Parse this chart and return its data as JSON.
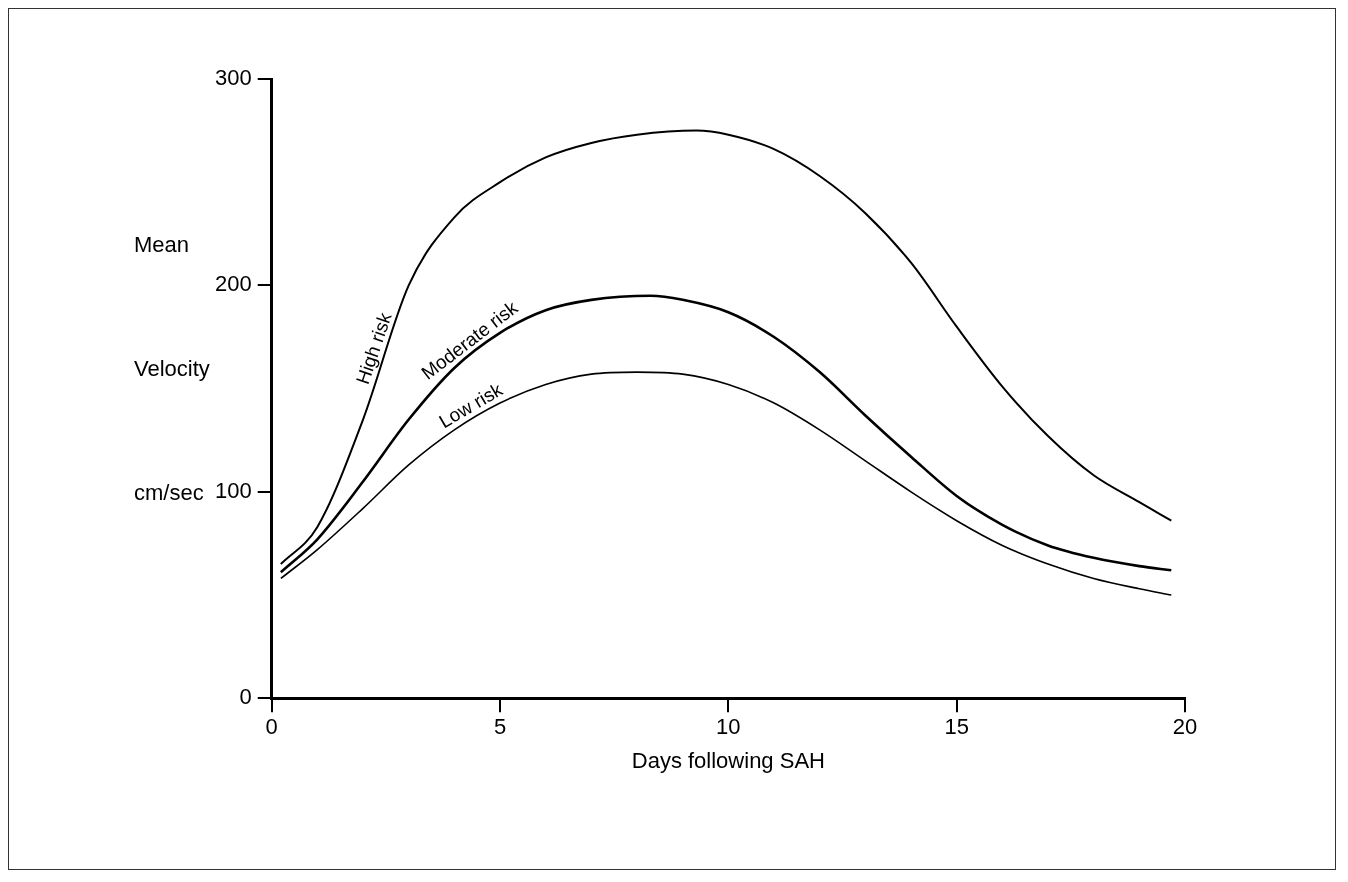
{
  "chart_data": {
    "type": "line",
    "xlabel": "Days following SAH",
    "ylabel": "Mean Velocity cm/sec",
    "xlim": [
      0,
      20
    ],
    "xticks": [
      0,
      5,
      10,
      15,
      20
    ],
    "ylim": [
      0,
      300
    ],
    "yticks": [
      0,
      100,
      200,
      300
    ],
    "grid": false,
    "legend": false,
    "marker": "none",
    "line_style": "solid",
    "series": [
      {
        "name": "High risk",
        "color": "#000000",
        "x": [
          0.2,
          1,
          2,
          3,
          4,
          5,
          6,
          7,
          8,
          9.3,
          10,
          11,
          12,
          13,
          14,
          15,
          16,
          17,
          18,
          19,
          19.7
        ],
        "values": [
          65,
          83,
          135,
          200,
          233,
          250,
          262,
          269,
          273,
          275,
          273,
          266,
          253,
          235,
          211,
          180,
          151,
          127,
          108,
          95,
          86
        ]
      },
      {
        "name": "Moderate risk",
        "color": "#000000",
        "x": [
          0.2,
          1,
          2,
          3,
          4,
          5,
          6,
          7,
          8.3,
          9,
          10,
          11,
          12,
          13,
          14,
          15,
          16,
          17,
          18,
          19,
          19.7
        ],
        "values": [
          61,
          77,
          105,
          135,
          160,
          177,
          188,
          193,
          195,
          193,
          187,
          175,
          158,
          137,
          117,
          98,
          84,
          74,
          68,
          64,
          62
        ]
      },
      {
        "name": "Low risk",
        "color": "#000000",
        "x": [
          0.2,
          1,
          2,
          3,
          4,
          5,
          6,
          7,
          8,
          9,
          10,
          11,
          12,
          13,
          14,
          15,
          16,
          17,
          18,
          19,
          19.7
        ],
        "values": [
          58,
          72,
          92,
          113,
          130,
          143,
          152,
          157,
          158,
          157,
          152,
          143,
          130,
          115,
          100,
          86,
          74,
          65,
          58,
          53,
          50
        ]
      }
    ]
  }
}
